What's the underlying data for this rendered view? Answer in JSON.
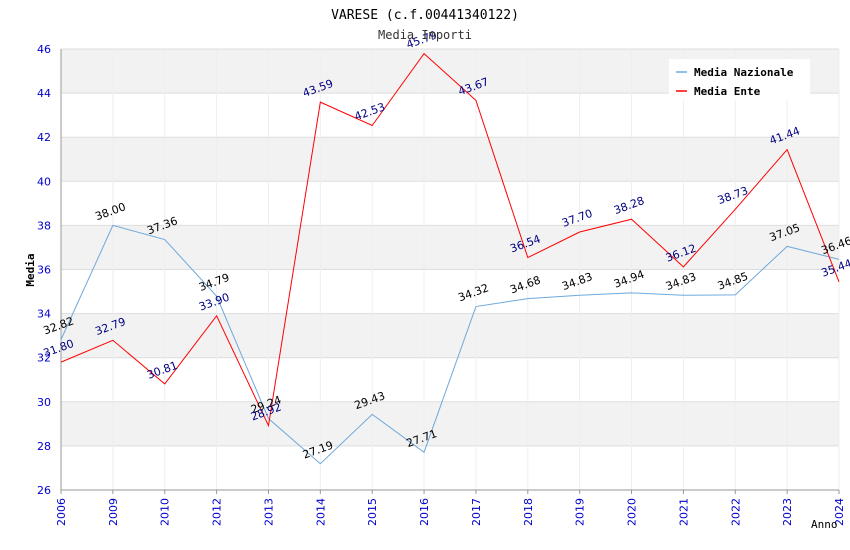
{
  "chart_data": {
    "type": "line",
    "title": "VARESE (c.f.00441340122)",
    "subtitle": "Media Importi",
    "xlabel": "Anno",
    "ylabel": "Media",
    "categories": [
      "2006",
      "2009",
      "2010",
      "2012",
      "2013",
      "2014",
      "2015",
      "2016",
      "2017",
      "2018",
      "2019",
      "2020",
      "2021",
      "2022",
      "2023",
      "2024"
    ],
    "ylim": [
      26,
      46
    ],
    "yticks": [
      26,
      28,
      30,
      32,
      34,
      36,
      38,
      40,
      42,
      44,
      46
    ],
    "legend_position": "top-right",
    "series": [
      {
        "name": "Media Nazionale",
        "color": "#6fa8dc",
        "label_color": "#000000",
        "values": [
          32.82,
          38.0,
          37.36,
          34.79,
          29.24,
          27.19,
          29.43,
          27.71,
          34.32,
          34.68,
          34.83,
          34.94,
          34.83,
          34.85,
          37.05,
          36.46
        ],
        "labels": [
          "32.82",
          "38.00",
          "37.36",
          "34.79",
          "29.24",
          "27.19",
          "29.43",
          "27.71",
          "34.32",
          "34.68",
          "34.83",
          "34.94",
          "34.83",
          "34.85",
          "37.05",
          "36.46"
        ]
      },
      {
        "name": "Media Ente",
        "color": "#ff0000",
        "label_color": "#000080",
        "values": [
          31.8,
          32.79,
          30.81,
          33.9,
          28.92,
          43.59,
          42.53,
          45.79,
          43.67,
          36.54,
          37.7,
          38.28,
          36.12,
          38.73,
          41.44,
          35.44
        ],
        "labels": [
          "31.80",
          "32.79",
          "30.81",
          "33.90",
          "28.92",
          "43.59",
          "42.53",
          "45.79",
          "43.67",
          "36.54",
          "37.70",
          "38.28",
          "36.12",
          "38.73",
          "41.44",
          "35.44"
        ]
      }
    ]
  }
}
